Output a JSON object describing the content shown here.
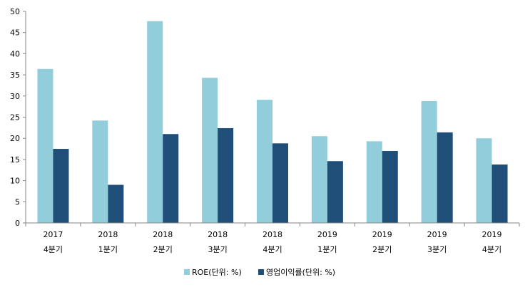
{
  "chart_data": {
    "type": "bar",
    "categories": [
      [
        "2017",
        "4분기"
      ],
      [
        "2018",
        "1분기"
      ],
      [
        "2018",
        "2분기"
      ],
      [
        "2018",
        "3분기"
      ],
      [
        "2018",
        "4분기"
      ],
      [
        "2019",
        "1분기"
      ],
      [
        "2019",
        "2분기"
      ],
      [
        "2019",
        "3분기"
      ],
      [
        "2019",
        "4분기"
      ]
    ],
    "series": [
      {
        "name": "ROE(단위: %)",
        "color": "#92CDDC",
        "values": [
          36.4,
          24.2,
          47.7,
          34.3,
          29.1,
          20.5,
          19.3,
          28.8,
          20.0
        ]
      },
      {
        "name": "영업이익률(단위: %)",
        "color": "#1F4E79",
        "values": [
          17.5,
          9.0,
          21.0,
          22.4,
          18.8,
          14.6,
          17.0,
          21.4,
          13.8
        ]
      }
    ],
    "ylim": [
      0,
      50
    ],
    "yticks": [
      0,
      5,
      10,
      15,
      20,
      25,
      30,
      35,
      40,
      45,
      50
    ],
    "grid": false,
    "legend_position": "bottom-center"
  }
}
